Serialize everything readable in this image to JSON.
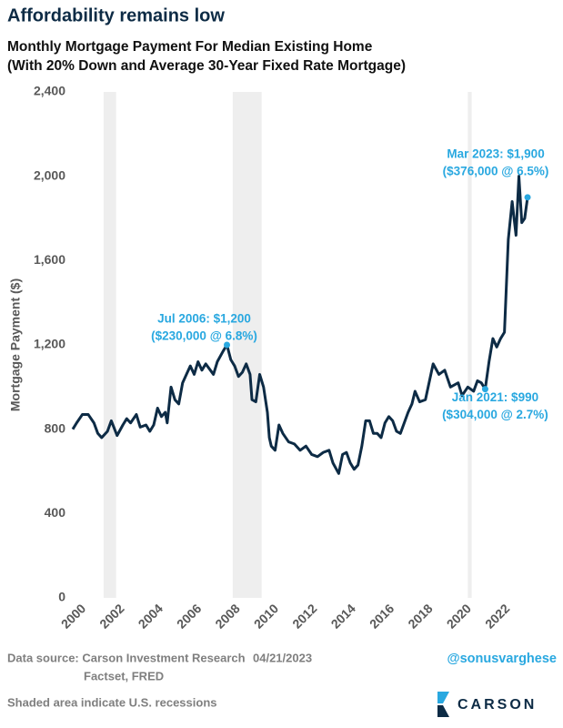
{
  "chart_data": {
    "type": "line",
    "heading": "Affordability remains low",
    "title": "Monthly Mortgage Payment For Median Existing Home",
    "subtitle": "(With 20% Down and Average 30-Year Fixed Rate Mortgage)",
    "y_label": "Mortgage Payment ($)",
    "xlim": [
      1999.6,
      2024
    ],
    "ylim": [
      0,
      2400
    ],
    "xticks": [
      2000,
      2002,
      2004,
      2006,
      2008,
      2010,
      2012,
      2014,
      2016,
      2018,
      2020,
      2022
    ],
    "yticks": [
      0,
      400,
      800,
      {
        "value": 1200,
        "label": "1,200"
      },
      {
        "value": 1600,
        "label": "1,600"
      },
      {
        "value": 2000,
        "label": "2,000"
      },
      {
        "value": 2400,
        "label": "2,400"
      }
    ],
    "grid": false,
    "recession_color": "#eeeeee",
    "recessions": [
      [
        2001.2,
        2001.85
      ],
      [
        2007.9,
        2009.4
      ],
      [
        2020.1,
        2020.3
      ]
    ],
    "series": [
      {
        "color": "#0d2b45",
        "x": [
          1999.6,
          1999.8,
          2000.1,
          2000.4,
          2000.7,
          2000.9,
          2001.1,
          2001.4,
          2001.6,
          2001.9,
          2002.2,
          2002.4,
          2002.6,
          2002.9,
          2003.1,
          2003.4,
          2003.6,
          2003.8,
          2004.0,
          2004.2,
          2004.4,
          2004.5,
          2004.7,
          2004.9,
          2005.1,
          2005.3,
          2005.5,
          2005.7,
          2005.9,
          2006.1,
          2006.3,
          2006.5,
          2006.9,
          2007.1,
          2007.4,
          2007.6,
          2007.8,
          2008.0,
          2008.2,
          2008.4,
          2008.6,
          2008.8,
          2008.9,
          2009.1,
          2009.3,
          2009.5,
          2009.7,
          2009.8,
          2009.9,
          2010.1,
          2010.3,
          2010.5,
          2010.8,
          2011.1,
          2011.4,
          2011.7,
          2012.0,
          2012.3,
          2012.6,
          2012.9,
          2013.1,
          2013.4,
          2013.6,
          2013.8,
          2014.0,
          2014.2,
          2014.4,
          2014.6,
          2014.8,
          2015.0,
          2015.2,
          2015.4,
          2015.6,
          2015.8,
          2016.0,
          2016.2,
          2016.4,
          2016.6,
          2016.8,
          2017.0,
          2017.2,
          2017.36,
          2017.6,
          2017.9,
          2018.3,
          2018.6,
          2018.9,
          2019.2,
          2019.6,
          2019.8,
          2020.1,
          2020.4,
          2020.6,
          2020.8,
          2021.0,
          2021.2,
          2021.4,
          2021.6,
          2021.8,
          2022.0,
          2022.2,
          2022.4,
          2022.6,
          2022.75,
          2022.9,
          2023.05,
          2023.2
        ],
        "values": [
          800,
          830,
          870,
          870,
          830,
          780,
          760,
          790,
          840,
          770,
          820,
          850,
          830,
          870,
          810,
          820,
          790,
          820,
          900,
          860,
          880,
          830,
          1000,
          940,
          920,
          1020,
          1060,
          1100,
          1060,
          1120,
          1080,
          1110,
          1060,
          1120,
          1170,
          1200,
          1130,
          1100,
          1050,
          1070,
          1110,
          1060,
          940,
          930,
          1060,
          1000,
          880,
          760,
          720,
          700,
          820,
          780,
          740,
          730,
          700,
          720,
          680,
          670,
          690,
          700,
          640,
          590,
          680,
          690,
          640,
          610,
          630,
          720,
          840,
          840,
          780,
          780,
          760,
          830,
          860,
          840,
          790,
          780,
          830,
          880,
          920,
          980,
          930,
          940,
          1110,
          1060,
          1080,
          1000,
          1020,
          960,
          1000,
          980,
          1030,
          1020,
          990,
          1120,
          1230,
          1190,
          1230,
          1260,
          1700,
          1880,
          1720,
          2000,
          1780,
          1800,
          1900
        ]
      }
    ],
    "annotation_color": "#29a8e0",
    "annotations": [
      {
        "lines": [
          "Jul 2006: $1,200",
          "($230,000 @ 6.8%)"
        ],
        "x": 2007.6,
        "y": 1200
      },
      {
        "lines": [
          "Jan 2021: $990",
          "($304,000 @ 2.7%)"
        ],
        "x": 2021.0,
        "y": 990
      },
      {
        "lines": [
          "Mar 2023: $1,900",
          "($376,000 @ 6.5%)"
        ],
        "x": 2023.2,
        "y": 1900
      }
    ]
  },
  "footer": {
    "source": [
      "Data source: Carson Investment Research",
      "Factset, FRED"
    ],
    "date": "04/21/2023",
    "handle": "@sonusvarghese",
    "note": "Shaded area indicate U.S. recessions",
    "logo": "CARSON"
  }
}
